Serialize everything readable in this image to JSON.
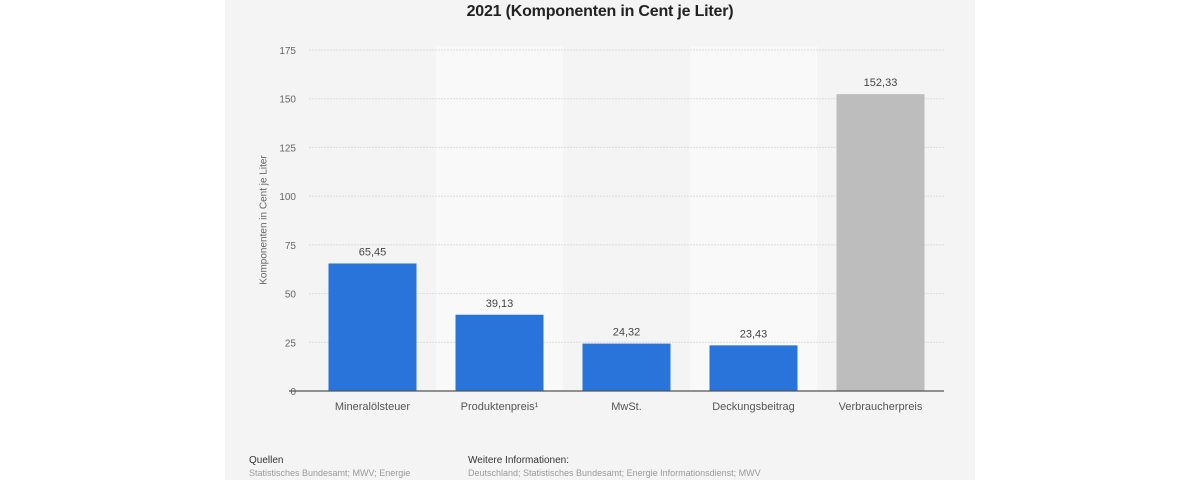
{
  "chart_data": {
    "type": "bar",
    "title": "2021 (Komponenten in Cent je Liter)",
    "xlabel": "",
    "ylabel": "Komponenten in Cent je Liter",
    "ylim": [
      0,
      175
    ],
    "yticks": [
      0,
      25,
      50,
      75,
      100,
      125,
      150,
      175
    ],
    "grid": true,
    "categories": [
      "Mineralölsteuer",
      "Produktenpreis¹",
      "MwSt.",
      "Deckungsbeitrag",
      "Verbraucherpreis"
    ],
    "values": [
      65.45,
      39.13,
      24.32,
      23.43,
      152.33
    ],
    "value_labels": [
      "65,45",
      "39,13",
      "24,32",
      "23,43",
      "152,33"
    ],
    "colors": [
      "#2874db",
      "#2874db",
      "#2874db",
      "#2874db",
      "#bdbdbd"
    ]
  },
  "footer": {
    "sources_heading": "Quellen",
    "sources_text": "Statistisches Bundesamt; MWV; Energie",
    "info_heading": "Weitere Informationen:",
    "info_text": "Deutschland; Statistisches Bundesamt; Energie Informationsdienst; MWV"
  }
}
